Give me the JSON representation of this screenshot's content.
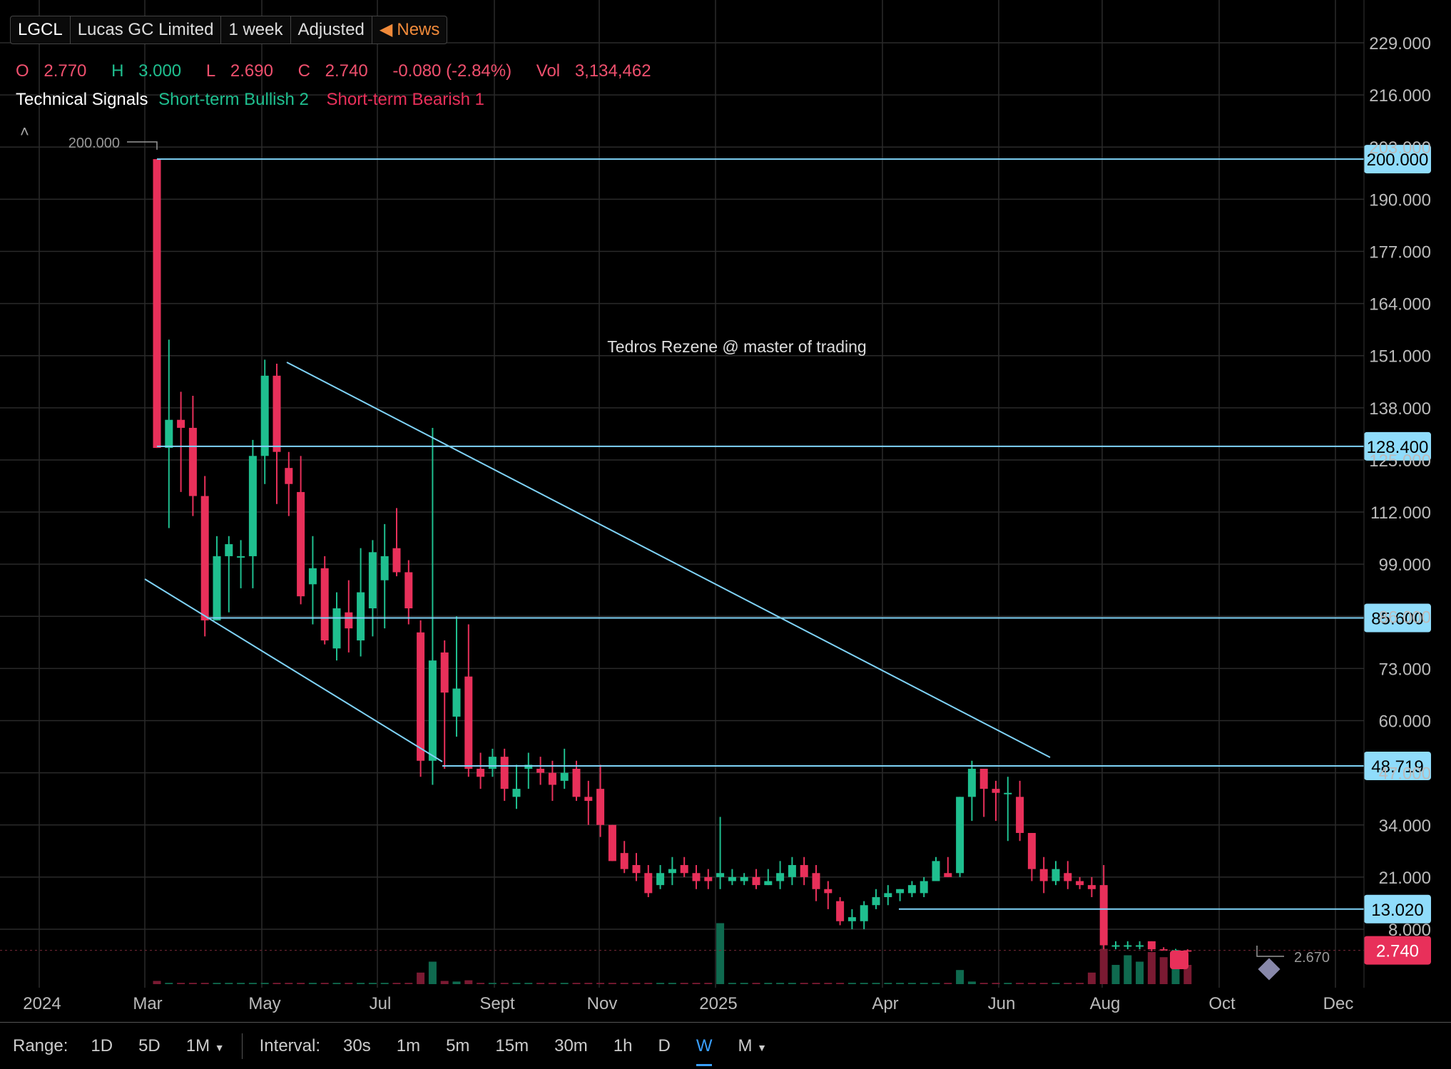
{
  "header": {
    "symbol": "LGCL",
    "company": "Lucas GC Limited",
    "period": "1 week",
    "adjustment": "Adjusted",
    "news_label": "News",
    "ohlc": {
      "o_label": "O",
      "o": "2.770",
      "h_label": "H",
      "h": "3.000",
      "l_label": "L",
      "l": "2.690",
      "c_label": "C",
      "c": "2.740",
      "change": "-0.080 (-2.84%)",
      "vol_label": "Vol",
      "vol": "3,134,462"
    },
    "signals": {
      "label": "Technical Signals",
      "bullish": "Short-term Bullish 2",
      "bearish": "Short-term Bearish 1"
    }
  },
  "colors": {
    "up": "#1fbf8f",
    "down": "#e8305a",
    "line": "#7fd3f7",
    "grid": "#2a2a2a",
    "accent": "#3aa0ff"
  },
  "chart_data": {
    "type": "candlestick",
    "annotation": "Tedros Rezene @ master of trading",
    "high_marker": "200.000",
    "low_marker": "2.670",
    "last_price": "2.740",
    "y_ticks": [
      "229.000",
      "216.000",
      "200.000",
      "190.000",
      "177.000",
      "164.000",
      "151.000",
      "138.000",
      "128.400",
      "112.000",
      "99.000",
      "85.600",
      "73.000",
      "60.000",
      "48.719",
      "34.000",
      "21.000",
      "13.020",
      "2.740"
    ],
    "y_tick_values": [
      229,
      216,
      203,
      190,
      177,
      164,
      151,
      138,
      125,
      112,
      99,
      86,
      73,
      60,
      47,
      34,
      21,
      8
    ],
    "y_tick_labels": [
      "229.000",
      "216.000",
      "203.000",
      "190.000",
      "177.000",
      "164.000",
      "151.000",
      "138.000",
      "125.000",
      "112.000",
      "99.000",
      "86.000",
      "73.000",
      "60.000",
      "47.000",
      "34.000",
      "21.000",
      "8.000"
    ],
    "x_ticks": [
      "2024",
      "Mar",
      "May",
      "Jul",
      "Sept",
      "Nov",
      "2025",
      "Apr",
      "Jun",
      "Aug",
      "Oct",
      "Dec"
    ],
    "horizontal_lines": [
      {
        "value": 200.0,
        "label": "200.000"
      },
      {
        "value": 128.4,
        "label": "128.400"
      },
      {
        "value": 85.6,
        "label": "85.600"
      },
      {
        "value": 48.719,
        "label": "48.719"
      },
      {
        "value": 13.02,
        "label": "13.020"
      }
    ],
    "candles": [
      {
        "o": 200,
        "h": 200,
        "l": 128,
        "c": 128
      },
      {
        "o": 128,
        "h": 155,
        "l": 108,
        "c": 135
      },
      {
        "o": 135,
        "h": 142,
        "l": 117,
        "c": 133
      },
      {
        "o": 133,
        "h": 141,
        "l": 111,
        "c": 116
      },
      {
        "o": 116,
        "h": 121,
        "l": 81,
        "c": 85
      },
      {
        "o": 85,
        "h": 106,
        "l": 85,
        "c": 101
      },
      {
        "o": 101,
        "h": 106,
        "l": 87,
        "c": 104
      },
      {
        "o": 101,
        "h": 105,
        "l": 93,
        "c": 101
      },
      {
        "o": 101,
        "h": 130,
        "l": 93,
        "c": 126
      },
      {
        "o": 126,
        "h": 150,
        "l": 119,
        "c": 146
      },
      {
        "o": 146,
        "h": 149,
        "l": 114,
        "c": 127
      },
      {
        "o": 123,
        "h": 127,
        "l": 111,
        "c": 119
      },
      {
        "o": 117,
        "h": 126,
        "l": 89,
        "c": 91
      },
      {
        "o": 94,
        "h": 106,
        "l": 84,
        "c": 98
      },
      {
        "o": 98,
        "h": 101,
        "l": 79,
        "c": 80
      },
      {
        "o": 78,
        "h": 92,
        "l": 75,
        "c": 88
      },
      {
        "o": 87,
        "h": 95,
        "l": 77,
        "c": 83
      },
      {
        "o": 80,
        "h": 103,
        "l": 76,
        "c": 92
      },
      {
        "o": 88,
        "h": 105,
        "l": 81,
        "c": 102
      },
      {
        "o": 95,
        "h": 109,
        "l": 83,
        "c": 101
      },
      {
        "o": 103,
        "h": 113,
        "l": 96,
        "c": 97
      },
      {
        "o": 97,
        "h": 100,
        "l": 84,
        "c": 88
      },
      {
        "o": 82,
        "h": 85,
        "l": 46,
        "c": 50
      },
      {
        "o": 50,
        "h": 133,
        "l": 44,
        "c": 75
      },
      {
        "o": 77,
        "h": 80,
        "l": 48,
        "c": 67
      },
      {
        "o": 61,
        "h": 86,
        "l": 56,
        "c": 68
      },
      {
        "o": 71,
        "h": 84,
        "l": 46,
        "c": 48
      },
      {
        "o": 48,
        "h": 52,
        "l": 43,
        "c": 46
      },
      {
        "o": 48,
        "h": 53,
        "l": 46,
        "c": 51
      },
      {
        "o": 51,
        "h": 53,
        "l": 40,
        "c": 43
      },
      {
        "o": 41,
        "h": 49,
        "l": 38,
        "c": 43
      },
      {
        "o": 48,
        "h": 52,
        "l": 43,
        "c": 49
      },
      {
        "o": 48,
        "h": 51,
        "l": 44,
        "c": 47
      },
      {
        "o": 47,
        "h": 50,
        "l": 40,
        "c": 44
      },
      {
        "o": 45,
        "h": 53,
        "l": 43,
        "c": 47
      },
      {
        "o": 48,
        "h": 50,
        "l": 40,
        "c": 41
      },
      {
        "o": 41,
        "h": 45,
        "l": 34,
        "c": 40
      },
      {
        "o": 43,
        "h": 49,
        "l": 31,
        "c": 34
      },
      {
        "o": 34,
        "h": 34,
        "l": 25,
        "c": 25
      },
      {
        "o": 27,
        "h": 30,
        "l": 22,
        "c": 23
      },
      {
        "o": 24,
        "h": 27,
        "l": 20,
        "c": 22
      },
      {
        "o": 22,
        "h": 24,
        "l": 16,
        "c": 17
      },
      {
        "o": 19,
        "h": 24,
        "l": 18,
        "c": 22
      },
      {
        "o": 22,
        "h": 26,
        "l": 19,
        "c": 23
      },
      {
        "o": 24,
        "h": 26,
        "l": 21,
        "c": 22
      },
      {
        "o": 22,
        "h": 24,
        "l": 18,
        "c": 20
      },
      {
        "o": 21,
        "h": 23,
        "l": 18,
        "c": 20
      },
      {
        "o": 21,
        "h": 36,
        "l": 18,
        "c": 22
      },
      {
        "o": 20,
        "h": 23,
        "l": 19,
        "c": 21
      },
      {
        "o": 20,
        "h": 22,
        "l": 19,
        "c": 21
      },
      {
        "o": 21,
        "h": 23,
        "l": 18,
        "c": 19
      },
      {
        "o": 19,
        "h": 23,
        "l": 19,
        "c": 20
      },
      {
        "o": 20,
        "h": 25,
        "l": 18,
        "c": 22
      },
      {
        "o": 21,
        "h": 26,
        "l": 19,
        "c": 24
      },
      {
        "o": 24,
        "h": 26,
        "l": 19,
        "c": 21
      },
      {
        "o": 22,
        "h": 24,
        "l": 15,
        "c": 18
      },
      {
        "o": 18,
        "h": 20,
        "l": 13,
        "c": 17
      },
      {
        "o": 15,
        "h": 16,
        "l": 9,
        "c": 10
      },
      {
        "o": 10,
        "h": 13,
        "l": 8,
        "c": 11
      },
      {
        "o": 10,
        "h": 15,
        "l": 8,
        "c": 14
      },
      {
        "o": 14,
        "h": 18,
        "l": 13,
        "c": 16
      },
      {
        "o": 16,
        "h": 19,
        "l": 14,
        "c": 17
      },
      {
        "o": 17,
        "h": 18,
        "l": 15,
        "c": 18
      },
      {
        "o": 17,
        "h": 20,
        "l": 16,
        "c": 19
      },
      {
        "o": 17,
        "h": 21,
        "l": 16,
        "c": 20
      },
      {
        "o": 20,
        "h": 26,
        "l": 20,
        "c": 25
      },
      {
        "o": 22,
        "h": 26,
        "l": 21,
        "c": 21
      },
      {
        "o": 22,
        "h": 41,
        "l": 21,
        "c": 41
      },
      {
        "o": 41,
        "h": 50,
        "l": 35,
        "c": 48
      },
      {
        "o": 48,
        "h": 48,
        "l": 36,
        "c": 43
      },
      {
        "o": 43,
        "h": 45,
        "l": 35,
        "c": 42
      },
      {
        "o": 42,
        "h": 46,
        "l": 30,
        "c": 42
      },
      {
        "o": 41,
        "h": 45,
        "l": 30,
        "c": 32
      },
      {
        "o": 32,
        "h": 32,
        "l": 20,
        "c": 23
      },
      {
        "o": 23,
        "h": 26,
        "l": 17,
        "c": 20
      },
      {
        "o": 20,
        "h": 25,
        "l": 19,
        "c": 23
      },
      {
        "o": 22,
        "h": 25,
        "l": 18,
        "c": 20
      },
      {
        "o": 20,
        "h": 21,
        "l": 18,
        "c": 19
      },
      {
        "o": 19,
        "h": 21,
        "l": 16,
        "c": 18
      },
      {
        "o": 19,
        "h": 24,
        "l": 3,
        "c": 4
      },
      {
        "o": 4,
        "h": 5,
        "l": 3,
        "c": 4
      },
      {
        "o": 4,
        "h": 5,
        "l": 3,
        "c": 4
      },
      {
        "o": 4,
        "h": 5,
        "l": 3,
        "c": 4
      },
      {
        "o": 5,
        "h": 5,
        "l": 2.5,
        "c": 3
      },
      {
        "o": 3,
        "h": 3.5,
        "l": 2.7,
        "c": 2.9
      },
      {
        "o": 2.8,
        "h": 3.1,
        "l": 2.6,
        "c": 2.8
      },
      {
        "o": 2.77,
        "h": 3.0,
        "l": 2.69,
        "c": 2.74
      }
    ],
    "volume": [
      0.05,
      0.02,
      0.02,
      0.02,
      0.02,
      0.02,
      0.02,
      0.02,
      0.02,
      0.02,
      0.02,
      0.02,
      0.02,
      0.02,
      0.02,
      0.02,
      0.02,
      0.02,
      0.02,
      0.02,
      0.02,
      0.02,
      0.18,
      0.35,
      0.05,
      0.04,
      0.06,
      0.02,
      0.02,
      0.02,
      0.02,
      0.02,
      0.02,
      0.02,
      0.02,
      0.02,
      0.02,
      0.02,
      0.02,
      0.02,
      0.02,
      0.02,
      0.02,
      0.02,
      0.02,
      0.02,
      0.02,
      0.95,
      0.02,
      0.02,
      0.02,
      0.02,
      0.02,
      0.02,
      0.02,
      0.02,
      0.02,
      0.02,
      0.02,
      0.02,
      0.02,
      0.02,
      0.02,
      0.02,
      0.02,
      0.02,
      0.02,
      0.22,
      0.04,
      0.02,
      0.02,
      0.02,
      0.02,
      0.02,
      0.02,
      0.02,
      0.02,
      0.02,
      0.18,
      0.55,
      0.3,
      0.45,
      0.35,
      0.5,
      0.42,
      0.25,
      0.3
    ]
  },
  "bottom_bar": {
    "range_label": "Range:",
    "ranges": [
      "1D",
      "5D",
      "1M"
    ],
    "interval_label": "Interval:",
    "intervals": [
      "30s",
      "1m",
      "5m",
      "15m",
      "30m",
      "1h",
      "D",
      "W",
      "M"
    ],
    "active_interval": "W"
  }
}
